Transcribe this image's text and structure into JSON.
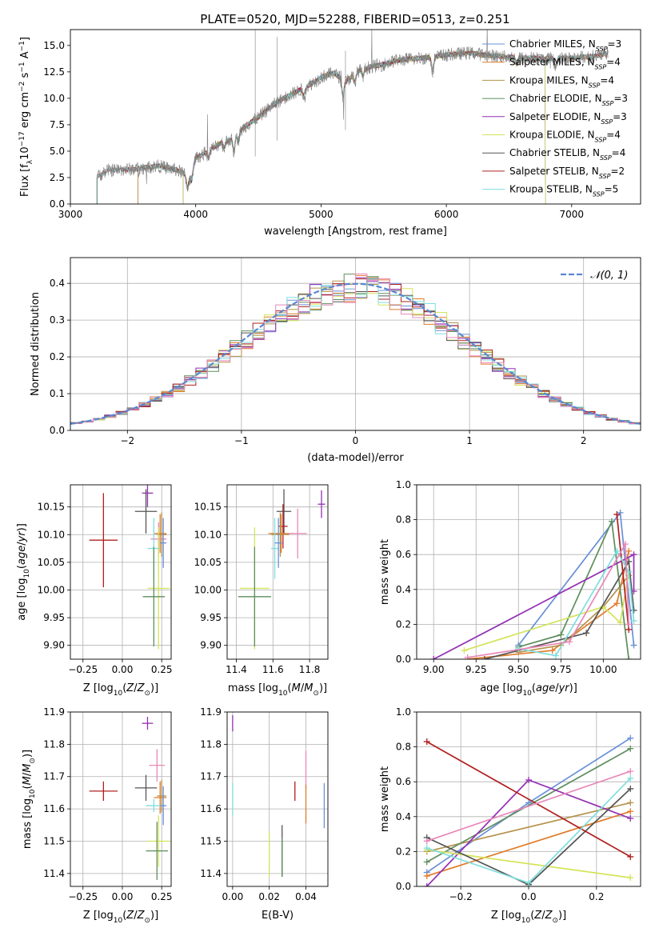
{
  "figure": {
    "title": "PLATE=0520, MJD=52288, FIBERID=0513, z=0.251"
  },
  "colors": {
    "Chabrier MILES": "#6a8fd8",
    "Salpeter MILES": "#e07b28",
    "Kroupa MILES": "#b5924c",
    "Chabrier ELODIE": "#5e8e5e",
    "Salpeter ELODIE": "#9430b4",
    "Kroupa ELODIE": "#d4e45a",
    "Chabrier STELIB": "#555555",
    "Salpeter STELIB": "#b02020",
    "Kroupa STELIB": "#7fdede",
    "pink": "#e888b8",
    "normal_curve": "#5b87d0"
  },
  "chart_data": [
    {
      "id": "spectrum",
      "type": "line",
      "title": "PLATE=0520, MJD=52288, FIBERID=0513, z=0.251",
      "xlabel": "wavelength [Angstrom, rest frame]",
      "ylabel": "Flux [f_λ 10^-17 erg cm^-2 s^-1 A^-1]",
      "xlim": [
        3000,
        7550
      ],
      "ylim": [
        0,
        16.5
      ],
      "xticks": [
        3000,
        4000,
        5000,
        6000,
        7000
      ],
      "yticks": [
        0.0,
        2.5,
        5.0,
        7.5,
        10.0,
        12.5,
        15.0
      ],
      "legend_position": "right",
      "legend": [
        "Chabrier MILES, N_SSP=3",
        "Salpeter MILES, N_SSP=4",
        "Kroupa MILES, N_SSP=4",
        "Chabrier ELODIE, N_SSP=3",
        "Salpeter ELODIE, N_SSP=3",
        "Kroupa ELODIE, N_SSP=4",
        "Chabrier STELIB, N_SSP=4",
        "Salpeter STELIB, N_SSP=2",
        "Kroupa STELIB, N_SSP=5"
      ],
      "continuum": [
        [
          3200,
          2.5
        ],
        [
          3300,
          3.2
        ],
        [
          3500,
          3.3
        ],
        [
          3700,
          3.6
        ],
        [
          3850,
          3.2
        ],
        [
          3950,
          2.6
        ],
        [
          4000,
          4.3
        ],
        [
          4100,
          5.0
        ],
        [
          4200,
          5.8
        ],
        [
          4300,
          6.2
        ],
        [
          4400,
          7.4
        ],
        [
          4500,
          8.2
        ],
        [
          4600,
          9.2
        ],
        [
          4700,
          10.0
        ],
        [
          4800,
          10.6
        ],
        [
          4900,
          11.2
        ],
        [
          5000,
          12.0
        ],
        [
          5100,
          12.4
        ],
        [
          5200,
          11.6
        ],
        [
          5300,
          12.6
        ],
        [
          5400,
          13.0
        ],
        [
          5500,
          13.2
        ],
        [
          5600,
          13.6
        ],
        [
          5700,
          13.7
        ],
        [
          5800,
          13.8
        ],
        [
          5900,
          13.9
        ],
        [
          6000,
          14.1
        ],
        [
          6100,
          14.2
        ],
        [
          6200,
          14.3
        ],
        [
          6300,
          14.1
        ],
        [
          6400,
          14.0
        ],
        [
          6500,
          13.9
        ],
        [
          6600,
          13.8
        ],
        [
          6700,
          13.8
        ],
        [
          6800,
          13.7
        ],
        [
          6900,
          13.8
        ],
        [
          7000,
          13.8
        ],
        [
          7100,
          13.9
        ],
        [
          7200,
          14.0
        ],
        [
          7290,
          14.3
        ]
      ],
      "absorption_features": [
        [
          3934,
          -1.2
        ],
        [
          3968,
          -1.0
        ],
        [
          4102,
          -0.7
        ],
        [
          4227,
          -0.6
        ],
        [
          4305,
          -1.3
        ],
        [
          4340,
          -0.7
        ],
        [
          4861,
          -0.8
        ],
        [
          5175,
          -1.6
        ],
        [
          5270,
          -0.8
        ],
        [
          5335,
          -0.6
        ],
        [
          5890,
          -1.3
        ],
        [
          6563,
          -0.6
        ],
        [
          6870,
          -0.8
        ]
      ]
    },
    {
      "id": "residuals",
      "type": "histogram",
      "xlabel": "(data-model)/error",
      "ylabel": "Normed distribution",
      "xlim": [
        -2.5,
        2.5
      ],
      "ylim": [
        0,
        0.47
      ],
      "xticks": [
        -2,
        -1,
        0,
        1,
        2
      ],
      "yticks": [
        0.0,
        0.1,
        0.2,
        0.3,
        0.4
      ],
      "legend": [
        "𝒩(0, 1)"
      ],
      "legend_position": "top-right",
      "bin_width": 0.1,
      "bin_start": -2.5,
      "n_bins": 50
    },
    {
      "id": "age_vs_Z",
      "type": "scatter",
      "xlabel": "Z [log10(Z/Z⊙)]",
      "ylabel": "age [log10(age/yr)]",
      "xlim": [
        -0.33,
        0.31
      ],
      "ylim": [
        9.875,
        10.19
      ],
      "xticks": [
        -0.25,
        0.0,
        0.25
      ],
      "yticks": [
        9.9,
        9.95,
        10.0,
        10.05,
        10.1,
        10.15
      ],
      "points": [
        {
          "model": "Salpeter STELIB",
          "x": -0.12,
          "y": 10.09,
          "xerr": 0.09,
          "yerr": 0.085
        },
        {
          "model": "Salpeter ELODIE",
          "x": 0.16,
          "y": 10.175,
          "xerr": 0.035,
          "yerr": 0.025
        },
        {
          "model": "Chabrier STELIB",
          "x": 0.15,
          "y": 10.142,
          "xerr": 0.07,
          "yerr": 0.04
        },
        {
          "model": "Salpeter MILES",
          "x": 0.24,
          "y": 10.102,
          "xerr": 0.04,
          "yerr": 0.035
        },
        {
          "model": "pink",
          "x": 0.23,
          "y": 10.092,
          "xerr": 0.05,
          "yerr": 0.03
        },
        {
          "model": "Kroupa MILES",
          "x": 0.25,
          "y": 10.1,
          "xerr": 0.03,
          "yerr": 0.04
        },
        {
          "model": "Kroupa STELIB",
          "x": 0.2,
          "y": 10.075,
          "xerr": 0.04,
          "yerr": 0.055
        },
        {
          "model": "Chabrier MILES",
          "x": 0.26,
          "y": 10.085,
          "xerr": 0.02,
          "yerr": 0.045
        },
        {
          "model": "Kroupa ELODIE",
          "x": 0.23,
          "y": 10.003,
          "xerr": 0.07,
          "yerr": 0.11
        },
        {
          "model": "Chabrier ELODIE",
          "x": 0.2,
          "y": 9.988,
          "xerr": 0.07,
          "yerr": 0.09
        }
      ]
    },
    {
      "id": "age_vs_mass",
      "type": "scatter",
      "xlabel": "mass [log10(M/M⊙)]",
      "ylabel": "",
      "xlim": [
        11.35,
        11.9
      ],
      "ylim": [
        9.875,
        10.19
      ],
      "xticks": [
        11.4,
        11.6,
        11.8
      ],
      "yticks": [
        9.9,
        9.95,
        10.0,
        10.05,
        10.1,
        10.15
      ],
      "points": [
        {
          "model": "Salpeter ELODIE",
          "x": 11.865,
          "y": 10.155,
          "xerr": 0.02,
          "yerr": 0.025
        },
        {
          "model": "Chabrier STELIB",
          "x": 11.66,
          "y": 10.142,
          "xerr": 0.04,
          "yerr": 0.04
        },
        {
          "model": "Salpeter STELIB",
          "x": 11.655,
          "y": 10.115,
          "xerr": 0.025,
          "yerr": 0.04
        },
        {
          "model": "Salpeter MILES",
          "x": 11.645,
          "y": 10.102,
          "xerr": 0.07,
          "yerr": 0.035
        },
        {
          "model": "pink",
          "x": 11.735,
          "y": 10.102,
          "xerr": 0.05,
          "yerr": 0.045
        },
        {
          "model": "Kroupa MILES",
          "x": 11.64,
          "y": 10.1,
          "xerr": 0.05,
          "yerr": 0.04
        },
        {
          "model": "Kroupa STELIB",
          "x": 11.61,
          "y": 10.075,
          "xerr": 0.02,
          "yerr": 0.055
        },
        {
          "model": "Chabrier MILES",
          "x": 11.63,
          "y": 10.085,
          "xerr": 0.02,
          "yerr": 0.045
        },
        {
          "model": "Kroupa ELODIE",
          "x": 11.5,
          "y": 10.003,
          "xerr": 0.08,
          "yerr": 0.11
        },
        {
          "model": "Chabrier ELODIE",
          "x": 11.5,
          "y": 9.988,
          "xerr": 0.09,
          "yerr": 0.09
        }
      ]
    },
    {
      "id": "weight_vs_age",
      "type": "line",
      "xlabel": "age  [log10(age/yr)]",
      "ylabel": "mass weight",
      "xlim": [
        8.9,
        10.22
      ],
      "ylim": [
        0,
        1.0
      ],
      "xticks": [
        9.0,
        9.25,
        9.5,
        9.75,
        10.0
      ],
      "yticks": [
        0.0,
        0.2,
        0.4,
        0.6,
        0.8,
        1.0
      ],
      "series": [
        {
          "model": "Chabrier MILES",
          "x": [
            9.5,
            10.1,
            10.18
          ],
          "y": [
            0.08,
            0.84,
            0.08
          ]
        },
        {
          "model": "Salpeter MILES",
          "x": [
            9.2,
            9.7,
            10.08,
            10.15
          ],
          "y": [
            0.0,
            0.05,
            0.32,
            0.62
          ]
        },
        {
          "model": "Kroupa MILES",
          "x": [
            9.5,
            9.75,
            10.0,
            10.15
          ],
          "y": [
            0.04,
            0.08,
            0.3,
            0.48
          ]
        },
        {
          "model": "Chabrier ELODIE",
          "x": [
            9.5,
            9.75,
            10.05,
            10.15
          ],
          "y": [
            0.07,
            0.14,
            0.79,
            0.0
          ]
        },
        {
          "model": "Salpeter ELODIE",
          "x": [
            9.0,
            10.18,
            10.18
          ],
          "y": [
            0.0,
            0.6,
            0.39
          ]
        },
        {
          "model": "Kroupa ELODIE",
          "x": [
            9.18,
            10.0,
            10.1,
            10.15
          ],
          "y": [
            0.05,
            0.3,
            0.21,
            0.5
          ]
        },
        {
          "model": "Chabrier STELIB",
          "x": [
            9.3,
            9.9,
            10.15,
            10.18
          ],
          "y": [
            0.0,
            0.15,
            0.56,
            0.28
          ]
        },
        {
          "model": "Salpeter STELIB",
          "x": [
            10.08,
            10.15
          ],
          "y": [
            0.83,
            0.17
          ]
        },
        {
          "model": "Kroupa STELIB",
          "x": [
            9.5,
            9.72,
            10.08,
            10.15,
            10.18
          ],
          "y": [
            0.06,
            0.02,
            0.62,
            0.5,
            0.22
          ]
        },
        {
          "model": "pink",
          "x": [
            9.2,
            9.8,
            10.13,
            10.15
          ],
          "y": [
            0.01,
            0.1,
            0.66,
            0.2
          ]
        }
      ]
    },
    {
      "id": "mass_vs_Z",
      "type": "scatter",
      "xlabel": "Z [log10(Z/Z⊙)]",
      "ylabel": "mass [log10(M/M⊙)]",
      "xlim": [
        -0.33,
        0.31
      ],
      "ylim": [
        11.36,
        11.9
      ],
      "xticks": [
        -0.25,
        0.0,
        0.25
      ],
      "yticks": [
        11.4,
        11.5,
        11.6,
        11.7,
        11.8,
        11.9
      ],
      "points": [
        {
          "model": "Salpeter STELIB",
          "x": -0.12,
          "y": 11.655,
          "xerr": 0.09,
          "yerr": 0.03
        },
        {
          "model": "Salpeter ELODIE",
          "x": 0.16,
          "y": 11.865,
          "xerr": 0.035,
          "yerr": 0.02
        },
        {
          "model": "pink",
          "x": 0.22,
          "y": 11.735,
          "xerr": 0.05,
          "yerr": 0.05
        },
        {
          "model": "Chabrier STELIB",
          "x": 0.15,
          "y": 11.665,
          "xerr": 0.07,
          "yerr": 0.04
        },
        {
          "model": "Salpeter MILES",
          "x": 0.24,
          "y": 11.635,
          "xerr": 0.04,
          "yerr": 0.05
        },
        {
          "model": "Kroupa MILES",
          "x": 0.25,
          "y": 11.64,
          "xerr": 0.03,
          "yerr": 0.05
        },
        {
          "model": "Kroupa STELIB",
          "x": 0.2,
          "y": 11.61,
          "xerr": 0.05,
          "yerr": 0.02
        },
        {
          "model": "Chabrier MILES",
          "x": 0.26,
          "y": 11.61,
          "xerr": 0.02,
          "yerr": 0.06
        },
        {
          "model": "Kroupa ELODIE",
          "x": 0.23,
          "y": 11.5,
          "xerr": 0.07,
          "yerr": 0.08
        },
        {
          "model": "Chabrier ELODIE",
          "x": 0.22,
          "y": 11.47,
          "xerr": 0.07,
          "yerr": 0.09
        }
      ]
    },
    {
      "id": "mass_vs_ebv",
      "type": "scatter",
      "xlabel": "E(B-V)",
      "ylabel": "",
      "xlim": [
        -0.003,
        0.052
      ],
      "ylim": [
        11.36,
        11.9
      ],
      "xticks": [
        0.0,
        0.02,
        0.04
      ],
      "yticks": [
        11.4,
        11.5,
        11.6,
        11.7,
        11.8,
        11.9
      ],
      "points": [
        {
          "model": "Salpeter ELODIE",
          "x": 0.0,
          "y": 11.865,
          "xerr": 0,
          "yerr": 0.025
        },
        {
          "model": "Kroupa STELIB",
          "x": 0.0,
          "y": 11.63,
          "xerr": 0,
          "yerr": 0.05
        },
        {
          "model": "Kroupa ELODIE",
          "x": 0.02,
          "y": 11.46,
          "xerr": 0,
          "yerr": 0.07
        },
        {
          "model": "Chabrier STELIB",
          "x": 0.027,
          "y": 11.47,
          "xerr": 0,
          "yerr": 0.08
        },
        {
          "model": "Chabrier ELODIE",
          "x": 0.027,
          "y": 11.45,
          "xerr": 0,
          "yerr": 0.06
        },
        {
          "model": "Salpeter STELIB",
          "x": 0.034,
          "y": 11.655,
          "xerr": 0,
          "yerr": 0.03
        },
        {
          "model": "pink",
          "x": 0.04,
          "y": 11.72,
          "xerr": 0,
          "yerr": 0.06
        },
        {
          "model": "Salpeter MILES",
          "x": 0.04,
          "y": 11.615,
          "xerr": 0,
          "yerr": 0.06
        },
        {
          "model": "Chabrier MILES",
          "x": 0.05,
          "y": 11.61,
          "xerr": 0,
          "yerr": 0.07
        }
      ]
    },
    {
      "id": "weight_vs_Z",
      "type": "line",
      "xlabel": "Z [log10(Z/Z⊙)]",
      "ylabel": "mass weight",
      "xlim": [
        -0.33,
        0.33
      ],
      "ylim": [
        0,
        1.0
      ],
      "xticks": [
        -0.2,
        0.0,
        0.2
      ],
      "yticks": [
        0.0,
        0.2,
        0.4,
        0.6,
        0.8,
        1.0
      ],
      "series": [
        {
          "model": "Chabrier MILES",
          "x": [
            -0.3,
            0.0,
            0.3
          ],
          "y": [
            0.08,
            0.48,
            0.85
          ]
        },
        {
          "model": "Salpeter MILES",
          "x": [
            -0.3,
            0.3
          ],
          "y": [
            0.06,
            0.43
          ]
        },
        {
          "model": "Kroupa MILES",
          "x": [
            -0.3,
            0.3
          ],
          "y": [
            0.2,
            0.48
          ]
        },
        {
          "model": "Chabrier ELODIE",
          "x": [
            -0.3,
            0.3
          ],
          "y": [
            0.14,
            0.79
          ]
        },
        {
          "model": "Salpeter ELODIE",
          "x": [
            -0.3,
            0.0,
            0.3
          ],
          "y": [
            0.0,
            0.61,
            0.39
          ]
        },
        {
          "model": "Kroupa ELODIE",
          "x": [
            -0.3,
            0.3
          ],
          "y": [
            0.21,
            0.05
          ]
        },
        {
          "model": "Chabrier STELIB",
          "x": [
            -0.3,
            0.0,
            0.3
          ],
          "y": [
            0.28,
            0.01,
            0.56
          ]
        },
        {
          "model": "Salpeter STELIB",
          "x": [
            -0.3,
            0.3
          ],
          "y": [
            0.83,
            0.17
          ]
        },
        {
          "model": "Kroupa STELIB",
          "x": [
            -0.3,
            0.0,
            0.3
          ],
          "y": [
            0.22,
            0.02,
            0.62
          ]
        },
        {
          "model": "pink",
          "x": [
            -0.3,
            0.3
          ],
          "y": [
            0.26,
            0.66
          ]
        }
      ]
    }
  ]
}
